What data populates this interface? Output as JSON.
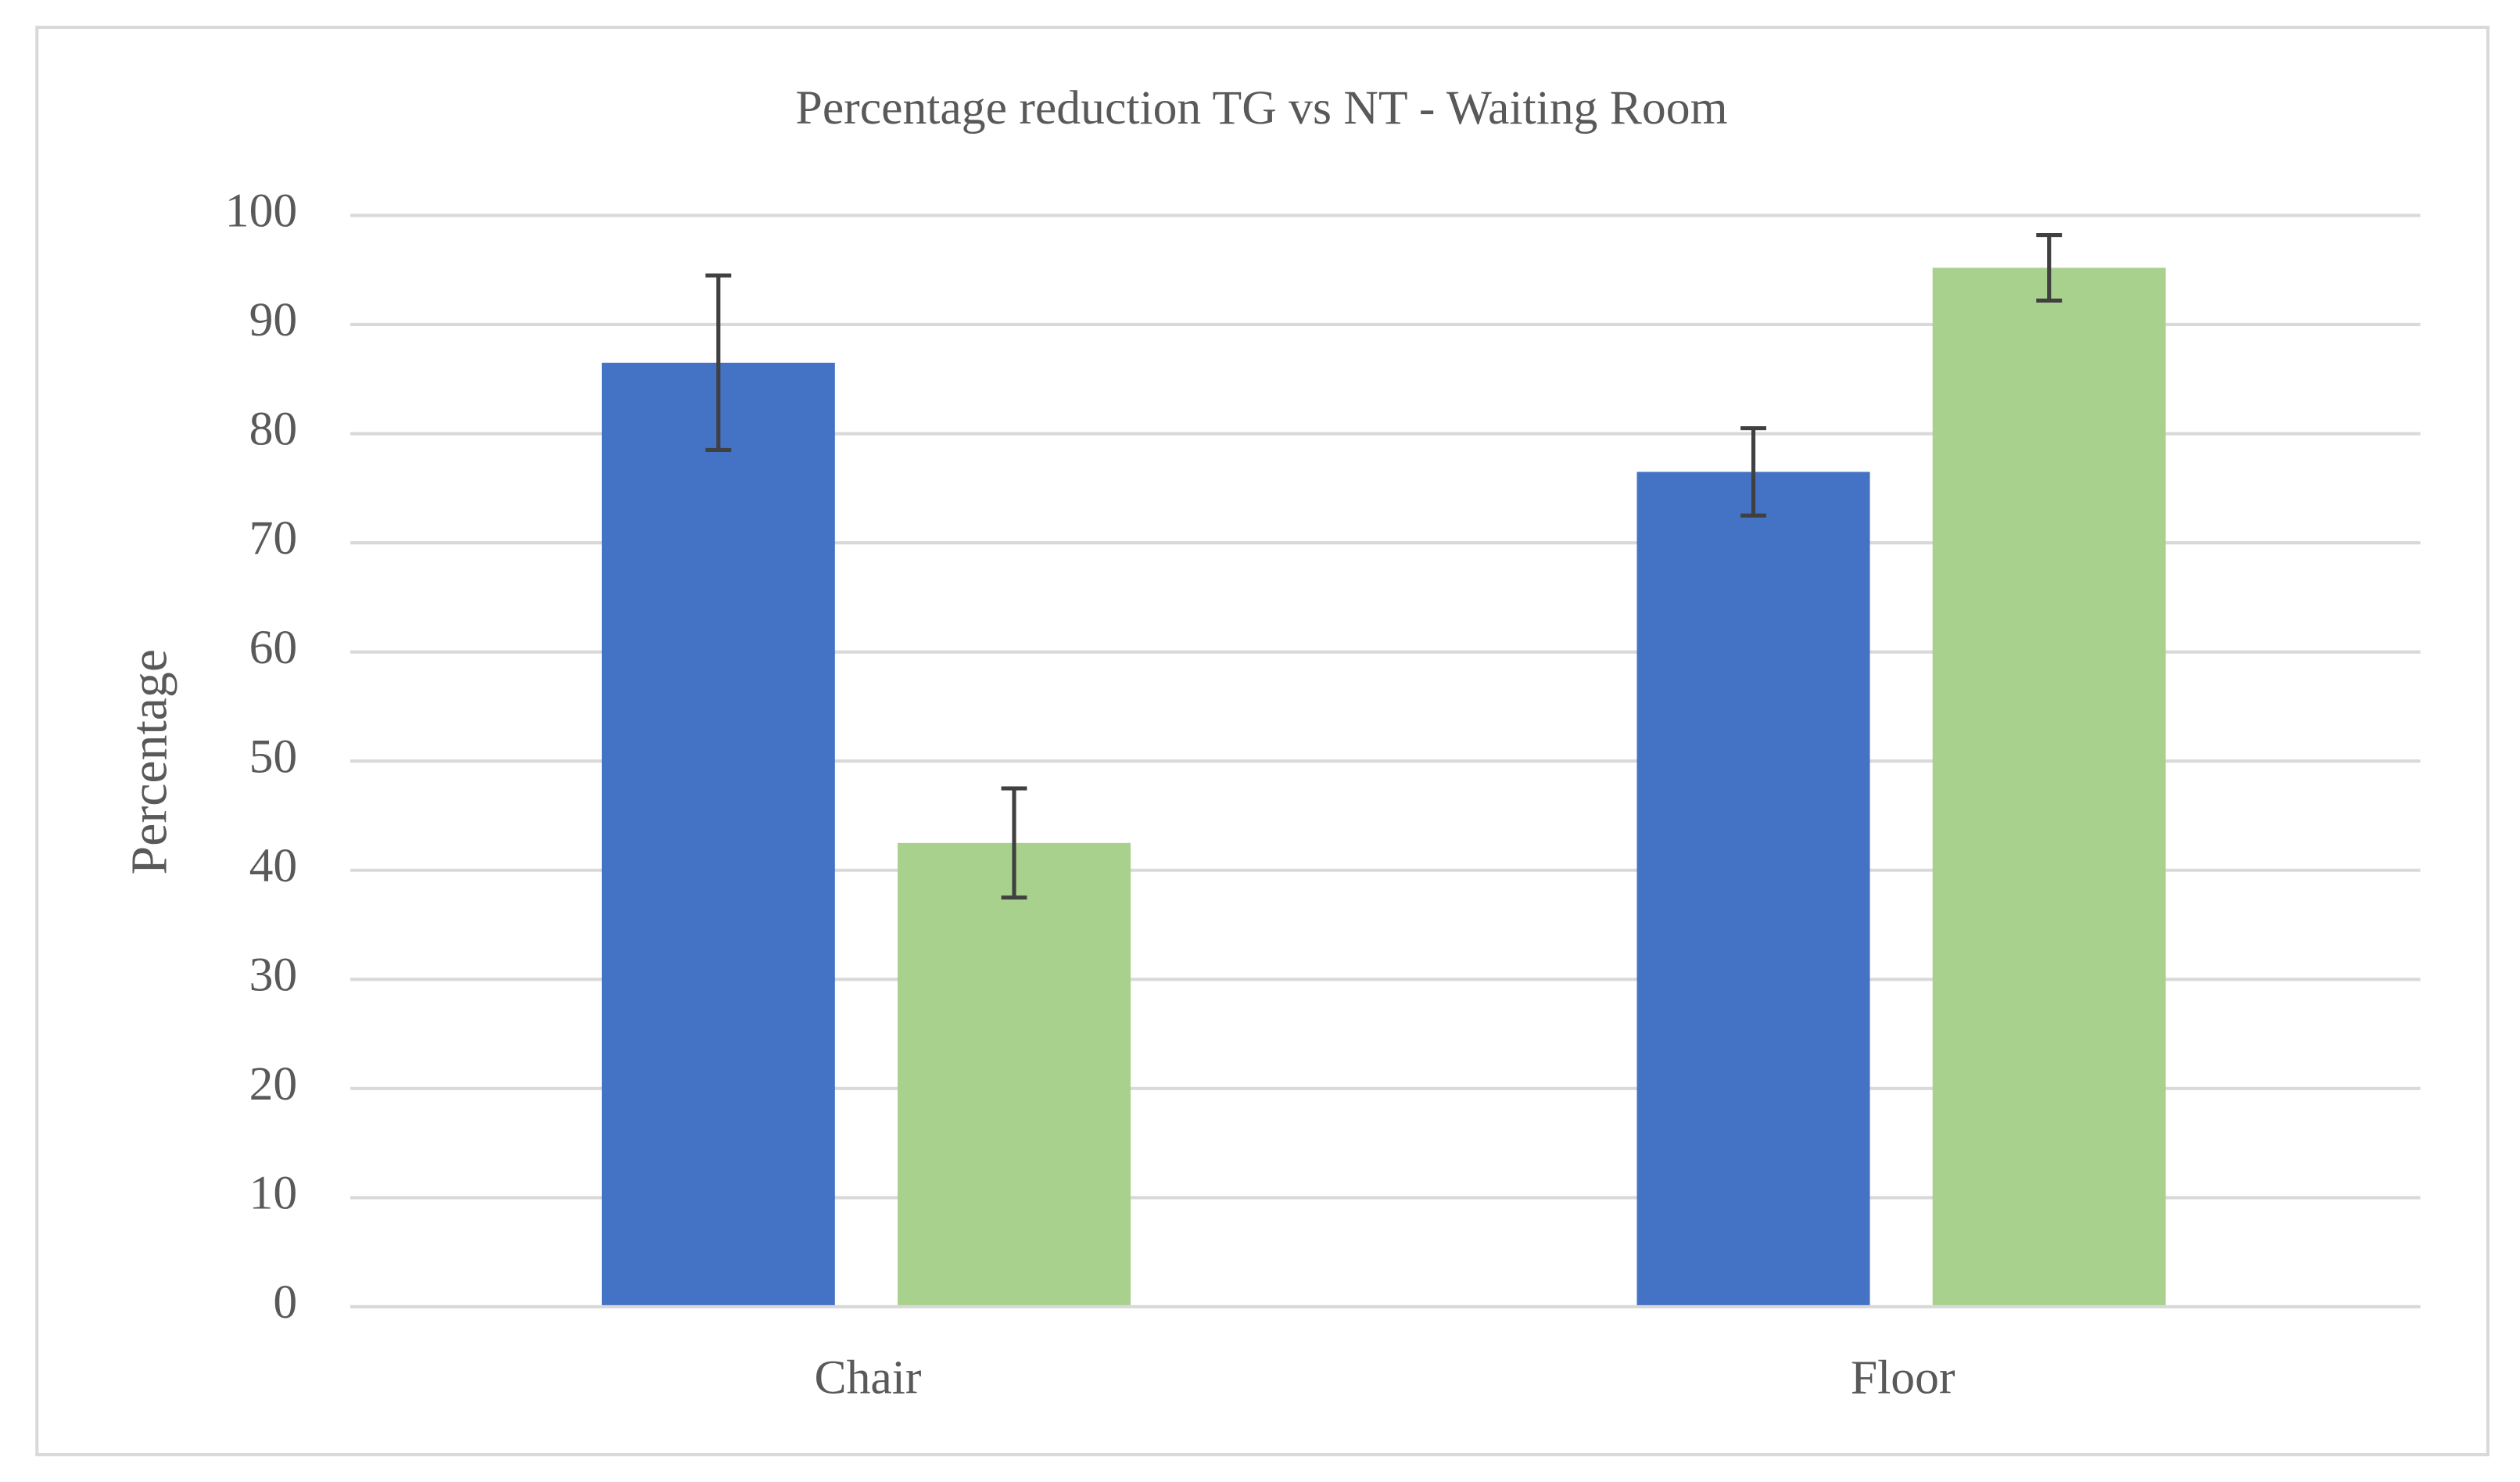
{
  "chart_data": {
    "type": "bar",
    "title": "Percentage reduction TG vs NT - Waiting Room",
    "y_label": "Percentage",
    "categories": [
      "Chair",
      "Floor"
    ],
    "series": [
      {
        "color": "#4472c4",
        "values": [
          86.5,
          76.5
        ],
        "errors": [
          8,
          4
        ]
      },
      {
        "color": "#a9d18e",
        "values": [
          42.5,
          95.2
        ],
        "errors": [
          5,
          3
        ]
      }
    ],
    "ylim": [
      0,
      100
    ],
    "yticks": [
      0,
      10,
      20,
      30,
      40,
      50,
      60,
      70,
      80,
      90,
      100
    ],
    "grid": true
  }
}
